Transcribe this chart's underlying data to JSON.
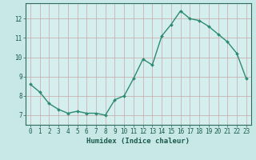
{
  "x": [
    0,
    1,
    2,
    3,
    4,
    5,
    6,
    7,
    8,
    9,
    10,
    11,
    12,
    13,
    14,
    15,
    16,
    17,
    18,
    19,
    20,
    21,
    22,
    23
  ],
  "y": [
    8.6,
    8.2,
    7.6,
    7.3,
    7.1,
    7.2,
    7.1,
    7.1,
    7.0,
    7.8,
    8.0,
    8.9,
    9.9,
    9.6,
    11.1,
    11.7,
    12.4,
    12.0,
    11.9,
    11.6,
    11.2,
    10.8,
    10.2,
    8.9
  ],
  "line_color": "#2d8b73",
  "marker": "D",
  "marker_size": 2,
  "bg_color": "#c8e8e8",
  "plot_bg_color": "#d5eeee",
  "grid_color": "#c8a8a8",
  "axis_color": "#2d6b5a",
  "text_color": "#1a5a4a",
  "xlabel": "Humidex (Indice chaleur)",
  "xlabel_fontsize": 6.5,
  "yticks": [
    7,
    8,
    9,
    10,
    11,
    12
  ],
  "xticks": [
    0,
    1,
    2,
    3,
    4,
    5,
    6,
    7,
    8,
    9,
    10,
    11,
    12,
    13,
    14,
    15,
    16,
    17,
    18,
    19,
    20,
    21,
    22,
    23
  ],
  "ylim": [
    6.5,
    12.8
  ],
  "xlim": [
    -0.5,
    23.5
  ],
  "tick_fontsize": 5.5,
  "line_width": 1.0,
  "bottom_bar_color": "#2d8b73"
}
